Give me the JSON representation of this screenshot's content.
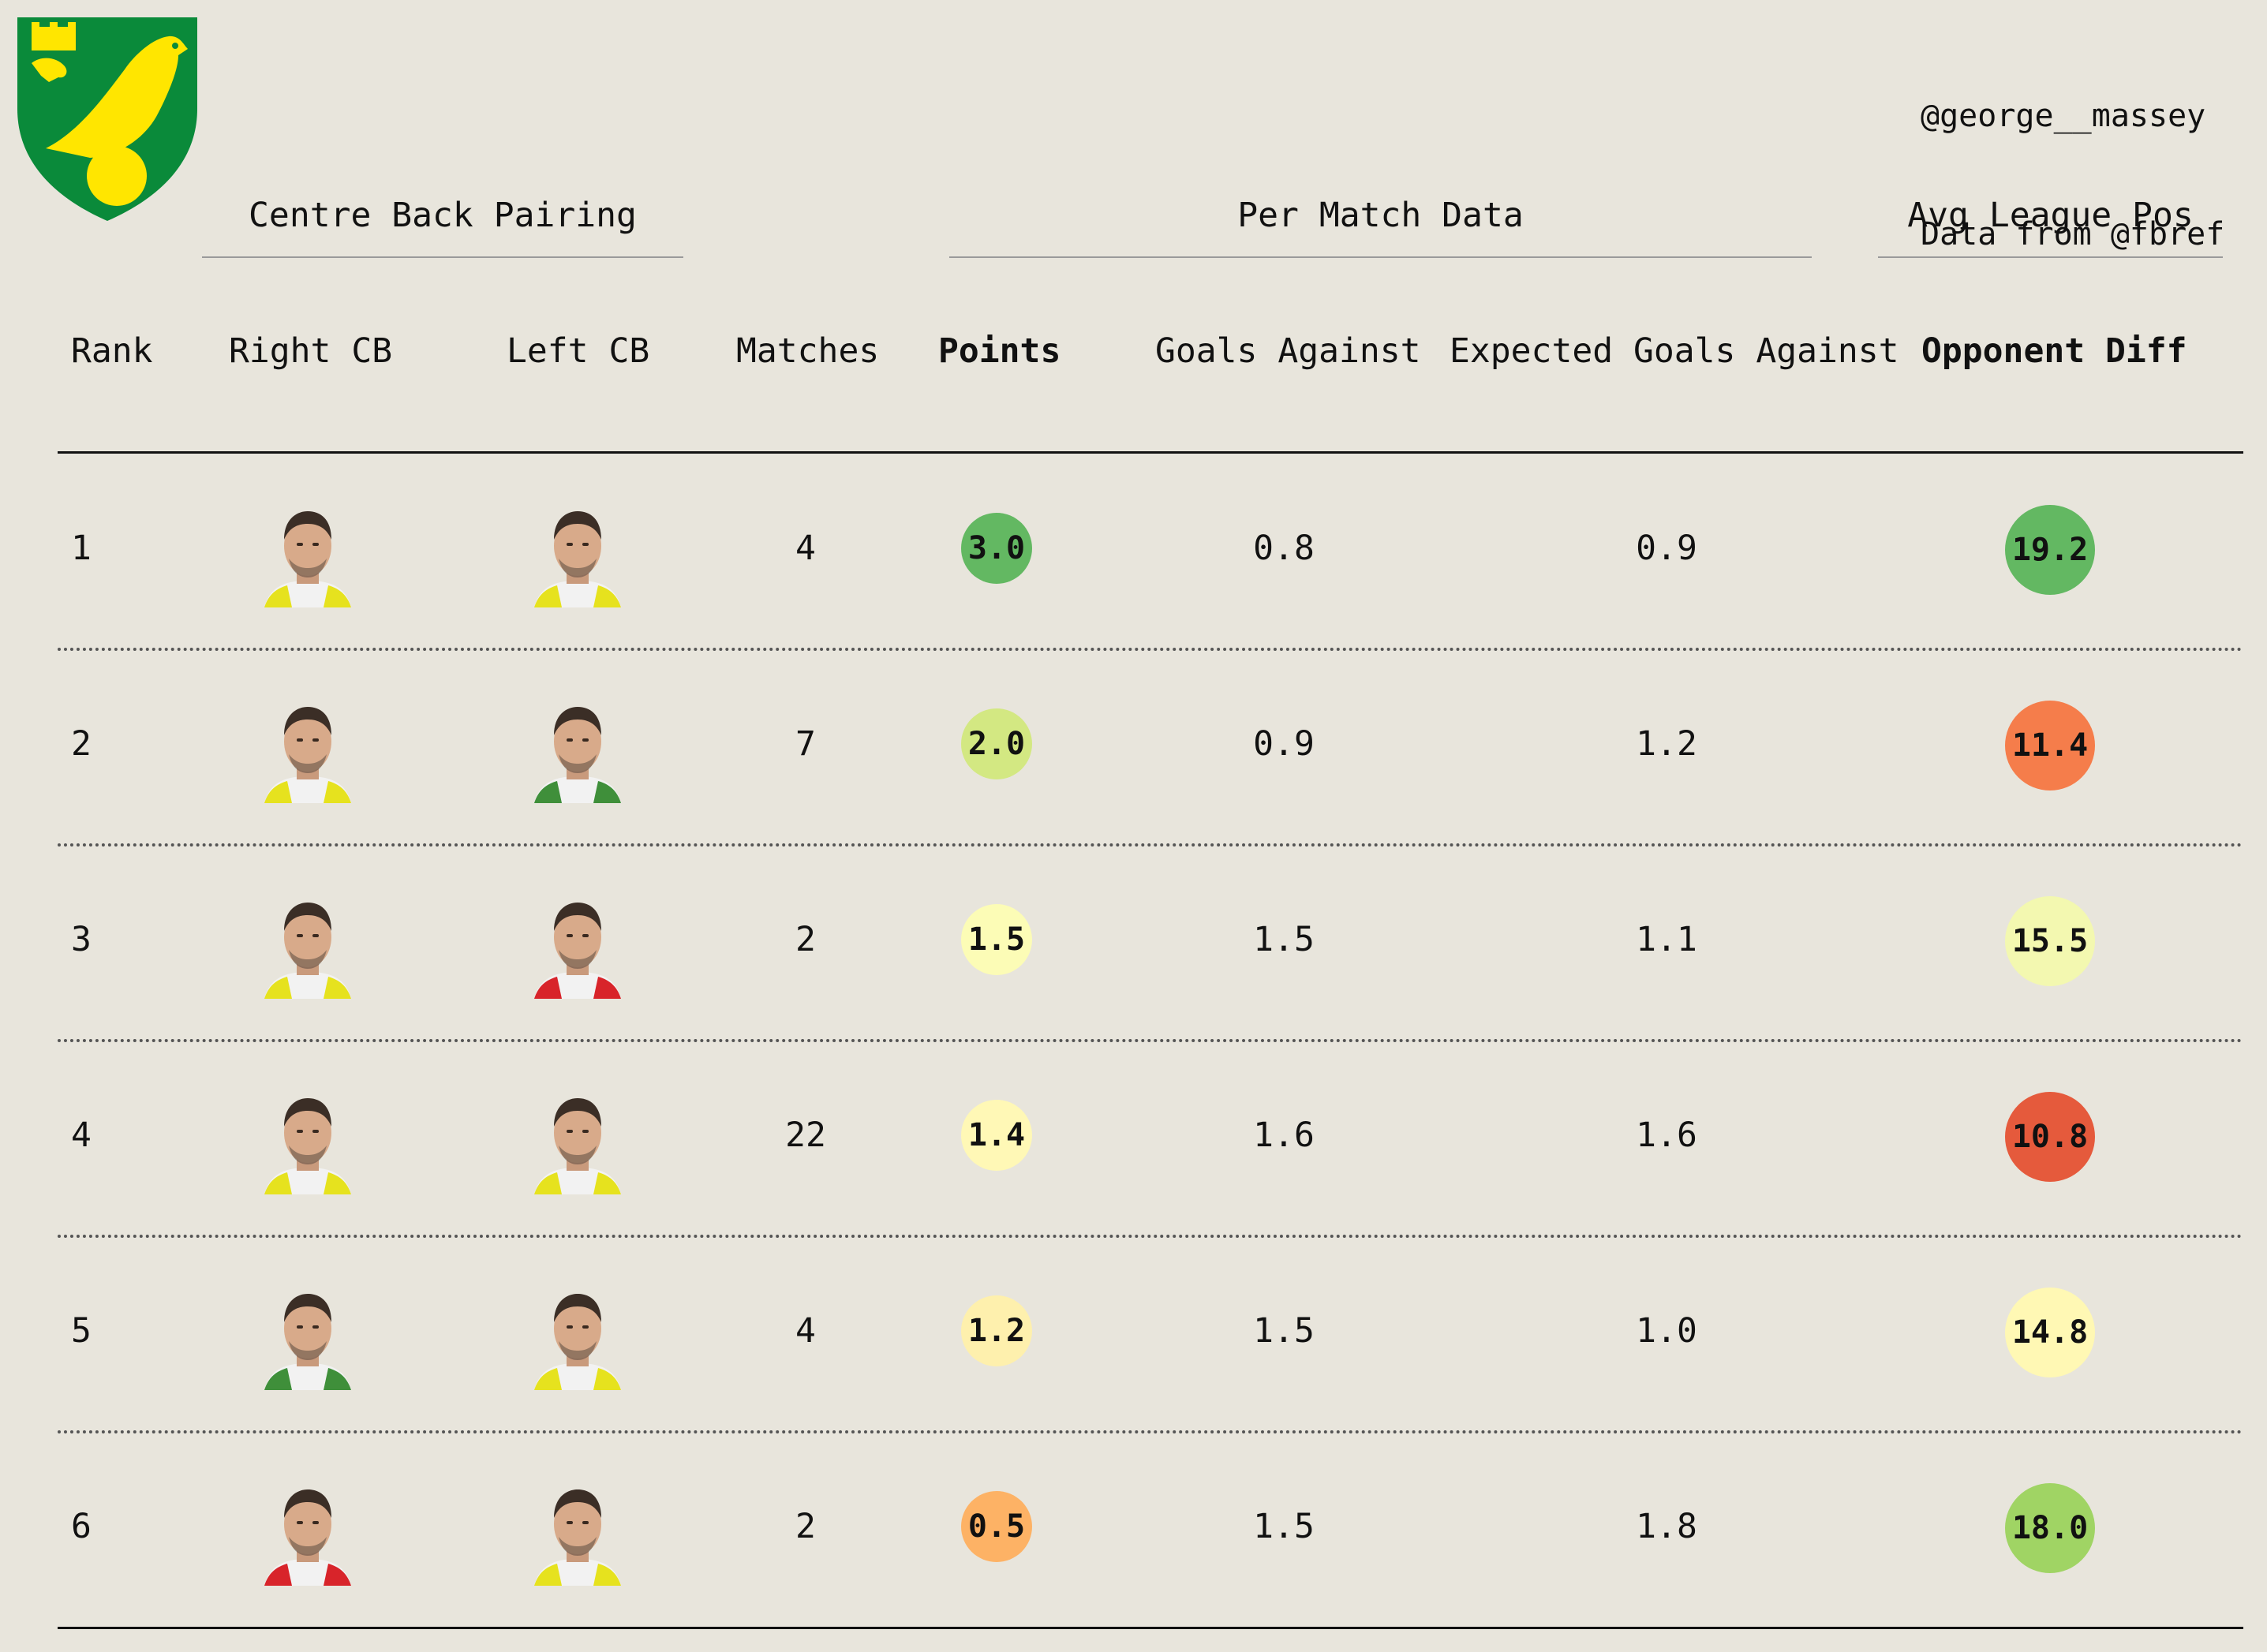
{
  "credits": [
    "@george__massey",
    "Data from @fbref"
  ],
  "crest": {
    "name": "norwich-city-crest",
    "colors": {
      "shield": "#0a8a3a",
      "bird": "#ffe600"
    }
  },
  "group_titles": {
    "pairing": "Centre Back Pairing",
    "per_match": "Per Match Data",
    "avg_pos": "Avg League Pos"
  },
  "columns": {
    "rank": "Rank",
    "right_cb": "Right CB",
    "left_cb": "Left CB",
    "matches": "Matches",
    "points": "Points",
    "goals_against": "Goals Against",
    "xga": "Expected Goals Against",
    "opp_diff": "Opponent Diff"
  },
  "chart_data": {
    "type": "table",
    "columns": [
      "Rank",
      "Right CB",
      "Left CB",
      "Matches",
      "Points",
      "Goals Against",
      "Expected Goals Against",
      "Opponent Diff"
    ],
    "rows": [
      {
        "rank": "1",
        "right_cb_kit": "yellow",
        "left_cb_kit": "yellow",
        "matches": "4",
        "points": "3.0",
        "goals_against": "0.8",
        "xga": "0.9",
        "opp_diff": "19.2",
        "points_color": "#63b862",
        "opp_color": "#63b862"
      },
      {
        "rank": "2",
        "right_cb_kit": "yellow",
        "left_cb_kit": "green",
        "matches": "7",
        "points": "2.0",
        "goals_against": "0.9",
        "xga": "1.2",
        "opp_diff": "11.4",
        "points_color": "#d3e882",
        "opp_color": "#f57d4b"
      },
      {
        "rank": "3",
        "right_cb_kit": "yellow",
        "left_cb_kit": "red",
        "matches": "2",
        "points": "1.5",
        "goals_against": "1.5",
        "xga": "1.1",
        "opp_diff": "15.5",
        "points_color": "#fcfcb6",
        "opp_color": "#f3f8b0"
      },
      {
        "rank": "4",
        "right_cb_kit": "yellow",
        "left_cb_kit": "yellow",
        "matches": "22",
        "points": "1.4",
        "goals_against": "1.6",
        "xga": "1.6",
        "opp_diff": "10.8",
        "points_color": "#fff8b6",
        "opp_color": "#e55a3c"
      },
      {
        "rank": "5",
        "right_cb_kit": "green",
        "left_cb_kit": "yellow",
        "matches": "4",
        "points": "1.2",
        "goals_against": "1.5",
        "xga": "1.0",
        "opp_diff": "14.8",
        "points_color": "#fef0ad",
        "opp_color": "#fff8b4"
      },
      {
        "rank": "6",
        "right_cb_kit": "red",
        "left_cb_kit": "yellow",
        "matches": "2",
        "points": "0.5",
        "goals_against": "1.5",
        "xga": "1.8",
        "opp_diff": "18.0",
        "points_color": "#fdb265",
        "opp_color": "#a0d464"
      }
    ]
  }
}
